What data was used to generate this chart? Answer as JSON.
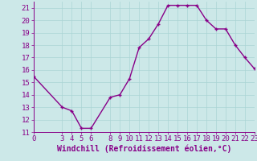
{
  "title": "",
  "xlabel": "Windchill (Refroidissement éolien,°C)",
  "background_color": "#cce8e8",
  "line_color": "#880088",
  "marker": "+",
  "x_hours": [
    0,
    3,
    4,
    5,
    6,
    8,
    9,
    10,
    11,
    12,
    13,
    14,
    15,
    16,
    17,
    18,
    19,
    20,
    21,
    22,
    23
  ],
  "y_values": [
    15.5,
    13.0,
    12.7,
    11.3,
    11.3,
    13.8,
    14.0,
    15.3,
    17.8,
    18.5,
    19.7,
    21.2,
    21.2,
    21.2,
    21.2,
    20.0,
    19.3,
    19.3,
    18.0,
    17.0,
    16.1
  ],
  "ylim": [
    11,
    21.5
  ],
  "xlim": [
    0,
    23
  ],
  "yticks": [
    11,
    12,
    13,
    14,
    15,
    16,
    17,
    18,
    19,
    20,
    21
  ],
  "xticks": [
    0,
    3,
    4,
    5,
    6,
    8,
    9,
    10,
    11,
    12,
    13,
    14,
    15,
    16,
    17,
    18,
    19,
    20,
    21,
    22,
    23
  ],
  "grid_color": "#aad4d4",
  "font_color": "#880088",
  "font_size": 6.5,
  "xlabel_font_size": 7.0,
  "line_width": 1.0,
  "marker_size": 3.5
}
